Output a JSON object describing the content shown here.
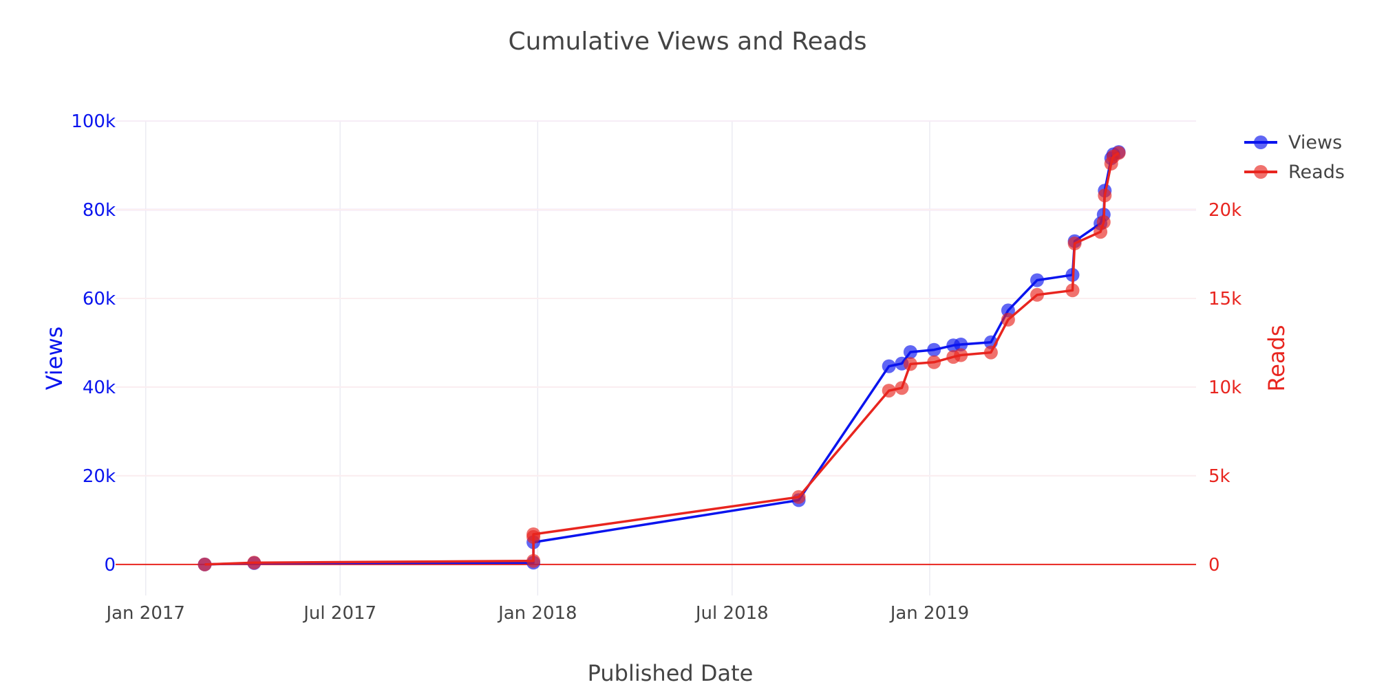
{
  "chart_data": {
    "type": "line",
    "title": "Cumulative Views and Reads",
    "xlabel": "Published Date",
    "x_tick_labels": [
      "Jan 2017",
      "Jul 2017",
      "Jan 2018",
      "Jul 2018",
      "Jan 2019"
    ],
    "x_tick_dates": [
      "2017-01-01",
      "2017-07-01",
      "2018-01-01",
      "2018-07-01",
      "2019-01-01"
    ],
    "xlim": [
      "2016-12-04",
      "2019-09-06"
    ],
    "y_axes": {
      "left": {
        "label": "Views",
        "range": [
          -7000,
          100000
        ],
        "ticks": [
          0,
          20000,
          40000,
          60000,
          80000,
          100000
        ],
        "tick_labels": [
          "0",
          "20k",
          "40k",
          "60k",
          "80k",
          "100k"
        ],
        "color": "#0a14ee"
      },
      "right": {
        "label": "Reads",
        "range": [
          -1750,
          25000
        ],
        "ticks": [
          0,
          5000,
          10000,
          15000,
          20000
        ],
        "tick_labels": [
          "0",
          "5k",
          "10k",
          "15k",
          "20k"
        ],
        "color": "#e8251f"
      }
    },
    "grid": true,
    "legend_position": "top-right",
    "series": [
      {
        "name": "Views",
        "axis": "left",
        "color": "#0a14ee",
        "points": [
          [
            "2017-02-25",
            0
          ],
          [
            "2017-04-12",
            300
          ],
          [
            "2017-12-28",
            400
          ],
          [
            "2017-12-28",
            5000
          ],
          [
            "2018-09-01",
            14500
          ],
          [
            "2018-11-24",
            44700
          ],
          [
            "2018-12-06",
            45300
          ],
          [
            "2018-12-14",
            47900
          ],
          [
            "2019-01-05",
            48400
          ],
          [
            "2019-01-23",
            49400
          ],
          [
            "2019-01-30",
            49600
          ],
          [
            "2019-02-27",
            50100
          ],
          [
            "2019-03-15",
            57300
          ],
          [
            "2019-04-11",
            64100
          ],
          [
            "2019-05-14",
            65300
          ],
          [
            "2019-05-16",
            72900
          ],
          [
            "2019-06-09",
            76900
          ],
          [
            "2019-06-12",
            78900
          ],
          [
            "2019-06-13",
            84300
          ],
          [
            "2019-06-19",
            91600
          ],
          [
            "2019-06-21",
            92500
          ],
          [
            "2019-06-26",
            93000
          ]
        ]
      },
      {
        "name": "Reads",
        "axis": "right",
        "color": "#e8251f",
        "points": [
          [
            "2017-02-25",
            0
          ],
          [
            "2017-04-12",
            100
          ],
          [
            "2017-12-28",
            200
          ],
          [
            "2017-12-28",
            1550
          ],
          [
            "2017-12-28",
            1700
          ],
          [
            "2018-09-01",
            3800
          ],
          [
            "2018-11-24",
            9800
          ],
          [
            "2018-12-06",
            9950
          ],
          [
            "2018-12-14",
            11300
          ],
          [
            "2019-01-05",
            11400
          ],
          [
            "2019-01-23",
            11700
          ],
          [
            "2019-01-30",
            11800
          ],
          [
            "2019-02-27",
            11950
          ],
          [
            "2019-03-15",
            13800
          ],
          [
            "2019-04-11",
            15200
          ],
          [
            "2019-05-14",
            15450
          ],
          [
            "2019-05-16",
            18100
          ],
          [
            "2019-06-09",
            18750
          ],
          [
            "2019-06-12",
            19300
          ],
          [
            "2019-06-13",
            20800
          ],
          [
            "2019-06-19",
            22600
          ],
          [
            "2019-06-21",
            23000
          ],
          [
            "2019-06-26",
            23200
          ]
        ]
      }
    ]
  }
}
